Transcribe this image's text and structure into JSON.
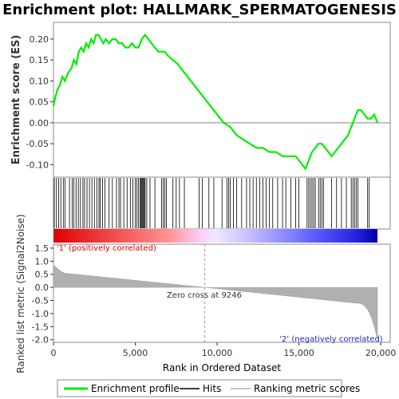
{
  "chart_data": {
    "type": "line",
    "title": "Enrichment plot: HALLMARK_SPERMATOGENESIS",
    "xlabel": "Rank in Ordered Dataset",
    "ylabel_top": "Enrichment score (ES)",
    "ylabel_bottom": "Ranked list metric (Signal2Noise)",
    "xlim": [
      0,
      19800
    ],
    "x_ticks": [
      0,
      5000,
      10000,
      15000,
      20000
    ],
    "x_tick_labels": [
      "0",
      "5,000",
      "10,000",
      "15,000",
      "20,000"
    ],
    "es_ylim": [
      -0.13,
      0.24
    ],
    "es_ticks": [
      0.2,
      0.15,
      0.1,
      0.05,
      0.0,
      -0.05,
      -0.1
    ],
    "es_tick_labels": [
      "0.20",
      "0.15",
      "0.10",
      "0.05",
      "0.00",
      "-0.05",
      "-0.10"
    ],
    "metric_ylim": [
      -2.1,
      1.65
    ],
    "metric_ticks": [
      1.5,
      1.0,
      0.5,
      0.0,
      -0.5,
      -1.0,
      -1.5,
      -2.0
    ],
    "metric_tick_labels": [
      "1.5",
      "1.0",
      "0.5",
      "0.0",
      "-0.5",
      "-1.0",
      "-1.5",
      "-2.0"
    ],
    "zero_cross": 9246,
    "zero_cross_label": "Zero cross at 9246",
    "pos_label": "'1' (positively correlated)",
    "neg_label": "'2' (negatively correlated)",
    "series": [
      {
        "name": "Enrichment profile",
        "color": "#00ee00",
        "x": [
          0,
          100,
          250,
          400,
          550,
          700,
          900,
          1100,
          1250,
          1400,
          1550,
          1700,
          1850,
          2000,
          2150,
          2300,
          2450,
          2600,
          2750,
          2900,
          3050,
          3200,
          3400,
          3600,
          3800,
          4000,
          4200,
          4400,
          4600,
          4800,
          5000,
          5200,
          5400,
          5600,
          5800,
          6000,
          6200,
          6400,
          6600,
          6800,
          7000,
          7300,
          7600,
          8000,
          8400,
          8800,
          9200,
          9600,
          10000,
          10400,
          10800,
          11200,
          11600,
          12000,
          12400,
          12800,
          13200,
          13600,
          14000,
          14400,
          14800,
          15000,
          15200,
          15400,
          15600,
          15800,
          16000,
          16200,
          16400,
          16600,
          16800,
          17000,
          17200,
          17400,
          17600,
          17800,
          18000,
          18200,
          18400,
          18600,
          18800,
          19000,
          19200,
          19400,
          19600,
          19800
        ],
        "values": [
          0.04,
          0.06,
          0.08,
          0.09,
          0.11,
          0.1,
          0.12,
          0.13,
          0.15,
          0.14,
          0.17,
          0.18,
          0.17,
          0.19,
          0.18,
          0.2,
          0.19,
          0.21,
          0.21,
          0.2,
          0.19,
          0.2,
          0.19,
          0.2,
          0.2,
          0.19,
          0.19,
          0.18,
          0.18,
          0.19,
          0.18,
          0.18,
          0.2,
          0.21,
          0.2,
          0.19,
          0.18,
          0.17,
          0.17,
          0.17,
          0.16,
          0.15,
          0.14,
          0.12,
          0.1,
          0.08,
          0.06,
          0.04,
          0.02,
          0.0,
          -0.01,
          -0.03,
          -0.04,
          -0.05,
          -0.06,
          -0.06,
          -0.07,
          -0.07,
          -0.08,
          -0.08,
          -0.08,
          -0.09,
          -0.1,
          -0.11,
          -0.09,
          -0.07,
          -0.06,
          -0.05,
          -0.05,
          -0.06,
          -0.07,
          -0.08,
          -0.07,
          -0.06,
          -0.05,
          -0.04,
          -0.03,
          -0.01,
          0.01,
          0.03,
          0.03,
          0.02,
          0.01,
          0.01,
          0.02,
          0.0
        ]
      }
    ],
    "hit_ranks": [
      50,
      180,
      320,
      450,
      600,
      700,
      980,
      1150,
      1250,
      1380,
      1520,
      1650,
      1800,
      1900,
      2050,
      2200,
      2350,
      2500,
      2650,
      2780,
      2850,
      3000,
      3150,
      3400,
      3600,
      3850,
      4000,
      4100,
      4300,
      4500,
      4700,
      4850,
      5000,
      5100,
      5200,
      5300,
      5350,
      5400,
      5450,
      5500,
      5550,
      5600,
      5700,
      5900,
      6200,
      6600,
      6700,
      6800,
      6900,
      7300,
      7500,
      7700,
      8000,
      8900,
      9100,
      9500,
      9800,
      10300,
      10600,
      10700,
      10800,
      11000,
      11200,
      11500,
      11800,
      12000,
      12200,
      12400,
      12600,
      12800,
      13000,
      13200,
      13400,
      13700,
      14000,
      14200,
      14500,
      14800,
      15000,
      15500,
      15600,
      15700,
      15800,
      15900,
      16000,
      16200,
      16300,
      16400,
      16500,
      17000,
      17300,
      17600,
      17900,
      18200,
      18300,
      18400,
      18500,
      18600,
      19200,
      19300
    ],
    "legend": [
      "Enrichment profile",
      "Hits",
      "Ranking metric scores"
    ]
  },
  "colors": {
    "profile": "#00ee00",
    "hits": "#000000",
    "metric_fill": "#b0b0b0",
    "pos_text": "#dd0000",
    "neg_text": "#2222cc",
    "frame": "#888888"
  }
}
